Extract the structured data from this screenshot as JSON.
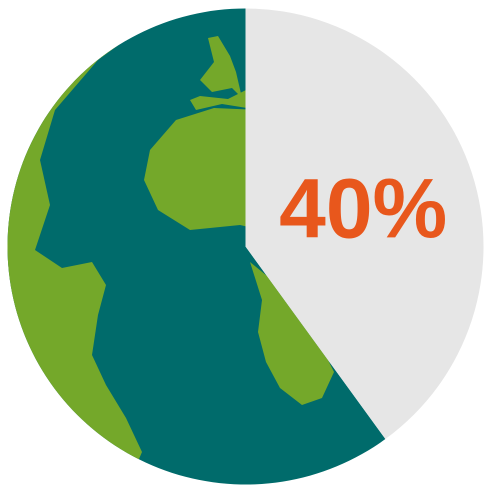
{
  "chart_data": {
    "type": "pie",
    "title": "",
    "slices": [
      {
        "label": "",
        "value": 40,
        "display": "40%",
        "color": "#e6e6e6",
        "fill_style": "flat"
      },
      {
        "label": "",
        "value": 60,
        "display": "",
        "color": "#006b6b",
        "fill_style": "globe-map"
      }
    ],
    "start_angle_deg": 0,
    "direction": "clockwise",
    "label_color": "#e8571c",
    "globe_land_color": "#74a82a",
    "globe_water_color": "#006b6b"
  }
}
